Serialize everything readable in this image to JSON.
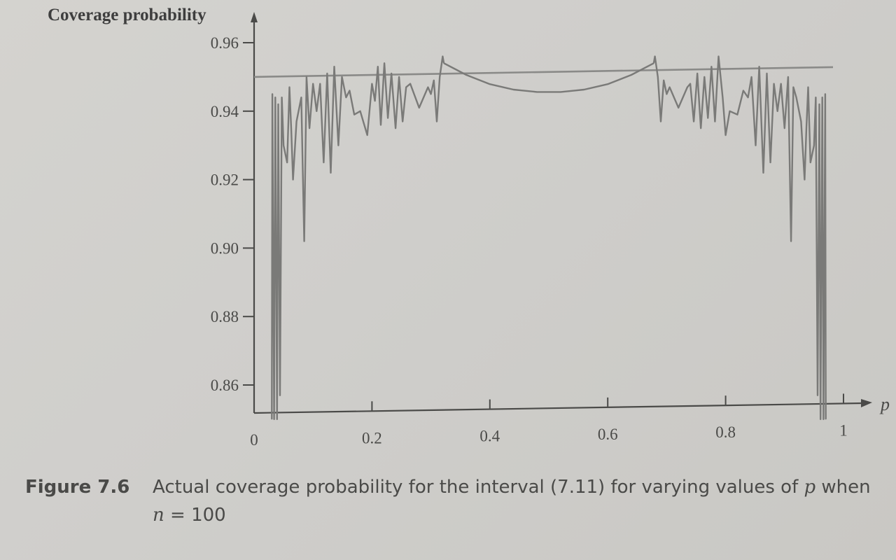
{
  "chart_data": {
    "type": "line",
    "ylabel": "Coverage probability",
    "xlabel": "p",
    "xlim": [
      0,
      1
    ],
    "ylim": [
      0.85,
      0.96
    ],
    "x_ticks": [
      0,
      0.2,
      0.4,
      0.6,
      0.8,
      1
    ],
    "x_tick_labels": [
      "0",
      "0.2",
      "0.4",
      "0.6",
      "0.8",
      "1"
    ],
    "y_ticks": [
      0.86,
      0.88,
      0.9,
      0.92,
      0.94,
      0.96
    ],
    "y_tick_labels": [
      "0.86",
      "0.88",
      "0.90",
      "0.92",
      "0.94",
      "0.96"
    ],
    "reference_line": {
      "y": 0.95
    },
    "series": [
      {
        "points": [
          [
            0.03,
            0.85
          ],
          [
            0.031,
            0.945
          ],
          [
            0.034,
            0.85
          ],
          [
            0.036,
            0.944
          ],
          [
            0.039,
            0.85
          ],
          [
            0.041,
            0.942
          ],
          [
            0.044,
            0.857
          ],
          [
            0.047,
            0.944
          ],
          [
            0.05,
            0.93
          ],
          [
            0.056,
            0.925
          ],
          [
            0.06,
            0.947
          ],
          [
            0.063,
            0.935
          ],
          [
            0.066,
            0.92
          ],
          [
            0.072,
            0.937
          ],
          [
            0.08,
            0.944
          ],
          [
            0.085,
            0.902
          ],
          [
            0.089,
            0.95
          ],
          [
            0.094,
            0.935
          ],
          [
            0.1,
            0.948
          ],
          [
            0.106,
            0.94
          ],
          [
            0.112,
            0.948
          ],
          [
            0.118,
            0.925
          ],
          [
            0.124,
            0.951
          ],
          [
            0.13,
            0.922
          ],
          [
            0.136,
            0.953
          ],
          [
            0.143,
            0.93
          ],
          [
            0.149,
            0.95
          ],
          [
            0.156,
            0.944
          ],
          [
            0.162,
            0.946
          ],
          [
            0.17,
            0.939
          ],
          [
            0.18,
            0.94
          ],
          [
            0.192,
            0.933
          ],
          [
            0.2,
            0.948
          ],
          [
            0.205,
            0.943
          ],
          [
            0.21,
            0.953
          ],
          [
            0.215,
            0.936
          ],
          [
            0.221,
            0.954
          ],
          [
            0.227,
            0.938
          ],
          [
            0.233,
            0.951
          ],
          [
            0.24,
            0.935
          ],
          [
            0.246,
            0.95
          ],
          [
            0.252,
            0.937
          ],
          [
            0.258,
            0.947
          ],
          [
            0.265,
            0.948
          ],
          [
            0.28,
            0.941
          ],
          [
            0.295,
            0.947
          ],
          [
            0.3,
            0.945
          ],
          [
            0.305,
            0.949
          ],
          [
            0.31,
            0.937
          ],
          [
            0.315,
            0.95
          ],
          [
            0.32,
            0.956
          ],
          [
            0.322,
            0.954
          ]
        ]
      },
      {
        "points": [
          [
            0.322,
            0.954
          ],
          [
            0.36,
            0.9506
          ],
          [
            0.4,
            0.9479
          ],
          [
            0.44,
            0.9463
          ],
          [
            0.48,
            0.9456
          ],
          [
            0.52,
            0.9456
          ],
          [
            0.56,
            0.9463
          ],
          [
            0.6,
            0.9479
          ],
          [
            0.64,
            0.9506
          ],
          [
            0.678,
            0.954
          ]
        ]
      },
      {
        "points": [
          [
            0.678,
            0.954
          ],
          [
            0.68,
            0.956
          ],
          [
            0.685,
            0.95
          ],
          [
            0.69,
            0.937
          ],
          [
            0.695,
            0.949
          ],
          [
            0.7,
            0.945
          ],
          [
            0.705,
            0.947
          ],
          [
            0.72,
            0.941
          ],
          [
            0.735,
            0.947
          ],
          [
            0.74,
            0.948
          ],
          [
            0.746,
            0.937
          ],
          [
            0.752,
            0.951
          ],
          [
            0.758,
            0.935
          ],
          [
            0.764,
            0.95
          ],
          [
            0.77,
            0.938
          ],
          [
            0.776,
            0.953
          ],
          [
            0.782,
            0.937
          ],
          [
            0.788,
            0.956
          ],
          [
            0.795,
            0.944
          ],
          [
            0.8,
            0.933
          ],
          [
            0.807,
            0.94
          ],
          [
            0.82,
            0.939
          ],
          [
            0.83,
            0.946
          ],
          [
            0.838,
            0.944
          ],
          [
            0.844,
            0.95
          ],
          [
            0.851,
            0.93
          ],
          [
            0.857,
            0.953
          ],
          [
            0.864,
            0.922
          ],
          [
            0.87,
            0.951
          ],
          [
            0.876,
            0.925
          ],
          [
            0.882,
            0.948
          ],
          [
            0.888,
            0.94
          ],
          [
            0.894,
            0.948
          ],
          [
            0.9,
            0.935
          ],
          [
            0.906,
            0.95
          ],
          [
            0.911,
            0.902
          ],
          [
            0.915,
            0.947
          ],
          [
            0.92,
            0.944
          ],
          [
            0.928,
            0.937
          ],
          [
            0.934,
            0.92
          ],
          [
            0.937,
            0.935
          ],
          [
            0.94,
            0.947
          ],
          [
            0.944,
            0.925
          ],
          [
            0.95,
            0.93
          ],
          [
            0.953,
            0.944
          ],
          [
            0.956,
            0.857
          ],
          [
            0.959,
            0.942
          ],
          [
            0.961,
            0.85
          ],
          [
            0.964,
            0.944
          ],
          [
            0.966,
            0.85
          ],
          [
            0.969,
            0.945
          ],
          [
            0.97,
            0.85
          ]
        ]
      }
    ]
  },
  "caption": {
    "label": "Figure 7.6",
    "text_before_p": "Actual coverage probability for the interval (7.11) for varying values of ",
    "p_symbol": "p",
    "text_after_p": " when",
    "n_symbol": "n",
    "n_equals": " = 100"
  },
  "colors": {
    "line": "#7a7a78",
    "axis": "#4a4a48",
    "reference": "#8a8a88"
  }
}
